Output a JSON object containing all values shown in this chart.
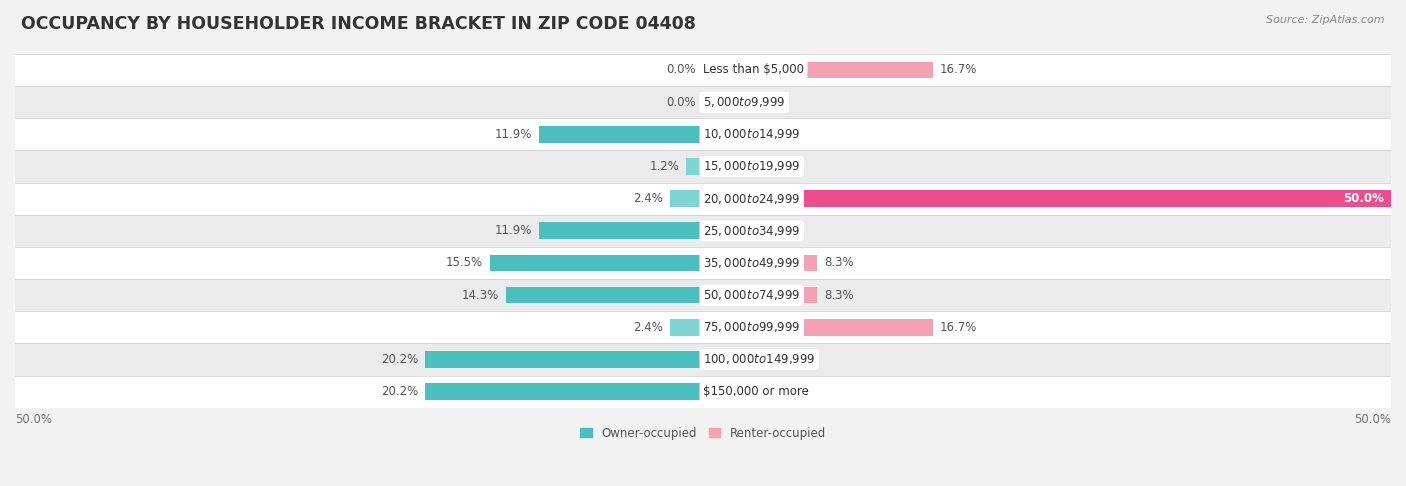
{
  "title": "OCCUPANCY BY HOUSEHOLDER INCOME BRACKET IN ZIP CODE 04408",
  "source": "Source: ZipAtlas.com",
  "categories": [
    "Less than $5,000",
    "$5,000 to $9,999",
    "$10,000 to $14,999",
    "$15,000 to $19,999",
    "$20,000 to $24,999",
    "$25,000 to $34,999",
    "$35,000 to $49,999",
    "$50,000 to $74,999",
    "$75,000 to $99,999",
    "$100,000 to $149,999",
    "$150,000 or more"
  ],
  "owner_values": [
    0.0,
    0.0,
    11.9,
    1.2,
    2.4,
    11.9,
    15.5,
    14.3,
    2.4,
    20.2,
    20.2
  ],
  "renter_values": [
    16.7,
    0.0,
    0.0,
    0.0,
    50.0,
    0.0,
    8.3,
    8.3,
    16.7,
    0.0,
    0.0
  ],
  "owner_color": "#4bbfc0",
  "owner_color_light": "#7fd4d4",
  "renter_color": "#f4a0b5",
  "renter_color_bright": "#ee4d8b",
  "owner_label": "Owner-occupied",
  "renter_label": "Renter-occupied",
  "xlim": 50.0,
  "bar_height": 0.52,
  "bg_color": "#f2f2f2",
  "row_bg_even": "#ffffff",
  "row_bg_odd": "#ebebeb",
  "title_fontsize": 12.5,
  "label_fontsize": 8.5,
  "cat_fontsize": 8.5,
  "tick_fontsize": 8.5,
  "source_fontsize": 8,
  "value_label_color": "#555555"
}
